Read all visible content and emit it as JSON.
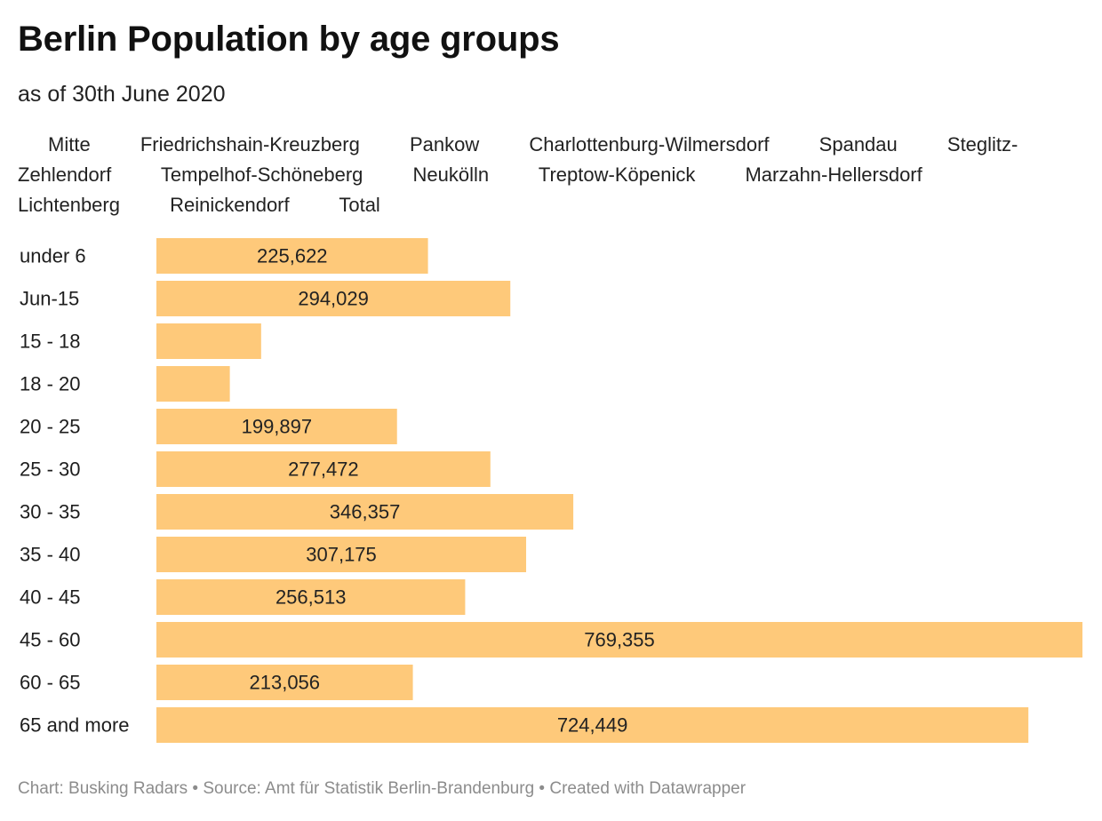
{
  "header": {
    "title": "Berlin Population by age groups",
    "subtitle": "as of 30th June 2020"
  },
  "legend": {
    "items": [
      "Mitte",
      "Friedrichshain-Kreuzberg",
      "Pankow",
      "Charlottenburg-Wilmersdorf",
      "Spandau",
      "Steglitz-Zehlendorf",
      "Tempelhof-Schöneberg",
      "Neukölln",
      "Treptow-Köpenick",
      "Marzahn-Hellersdorf",
      "Lichtenberg",
      "Reinickendorf",
      "Total"
    ]
  },
  "footer": {
    "credit": "Chart: Busking Radars • Source: Amt für Statistik Berlin-Brandenburg • Created with Datawrapper"
  },
  "colors": {
    "bar": "#fec97a"
  },
  "chart_data": {
    "type": "bar",
    "orientation": "horizontal",
    "categories": [
      "under 6",
      "Jun-15",
      "15 - 18",
      "18 - 20",
      "20 - 25",
      "25 - 30",
      "30 - 35",
      "35 - 40",
      "40 - 45",
      "45 - 60",
      "60 - 65",
      "65 and more"
    ],
    "values": [
      225622,
      294029,
      87000,
      61000,
      199897,
      277472,
      346357,
      307175,
      256513,
      769355,
      213056,
      724449
    ],
    "labels": [
      "225,622",
      "294,029",
      "",
      "",
      "199,897",
      "277,472",
      "346,357",
      "307,175",
      "256,513",
      "769,355",
      "213,056",
      "724,449"
    ],
    "xlim": [
      0,
      769355
    ],
    "grid": false,
    "legend_position": "top"
  }
}
